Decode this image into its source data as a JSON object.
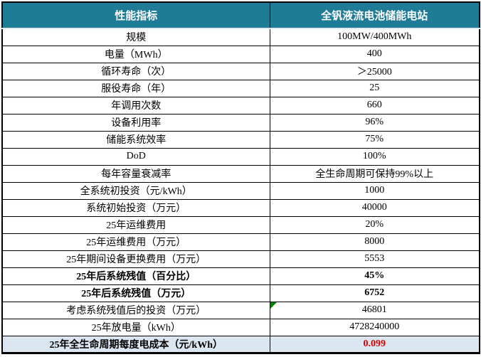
{
  "table": {
    "header": {
      "indicator_col": "性能指标",
      "value_col": "全钒液流电池储能电站"
    },
    "rows": [
      {
        "label": "规模",
        "value": "100MW/400MWh"
      },
      {
        "label": "电量（MWh）",
        "value": "400"
      },
      {
        "label": "循环寿命（次）",
        "value": "＞25000"
      },
      {
        "label": "服役寿命（年）",
        "value": "25"
      },
      {
        "label": "年调用次数",
        "value": "660"
      },
      {
        "label": "设备利用率",
        "value": "96%"
      },
      {
        "label": "储能系统效率",
        "value": "75%"
      },
      {
        "label": "DoD",
        "value": "100%"
      },
      {
        "label": "每年容量衰减率",
        "value": "全生命周期可保持99%以上"
      },
      {
        "label": "全系统初投资（元/kWh）",
        "value": "1000"
      },
      {
        "label": "系统初始投资（万元）",
        "value": "40000"
      },
      {
        "label": "25年运维费用",
        "value": "20%"
      },
      {
        "label": "25年运维费用（万元）",
        "value": "8000"
      },
      {
        "label": "25年期间设备更换费用（万元）",
        "value": "5553"
      },
      {
        "label": "25年后系统残值（百分比）",
        "value": "45%",
        "bold": true
      },
      {
        "label": "25年后系统残值（万元）",
        "value": "6752",
        "bold": true
      },
      {
        "label": "考虑系统残值后的投资（万元）",
        "value": "46801",
        "error_marker": true
      },
      {
        "label": "25年放电量（kWh）",
        "value": "4728240000"
      },
      {
        "label": "25年全生命周期每度电成本（元/kWh）",
        "value": "0.099",
        "highlight": true
      }
    ],
    "colors": {
      "header_bg": "#1f7c96",
      "header_text": "#ffffff",
      "highlight_row_bg": "#dce6f1",
      "result_value_red": "#d60000",
      "error_marker_green": "#008000",
      "border_black": "#000000"
    }
  }
}
